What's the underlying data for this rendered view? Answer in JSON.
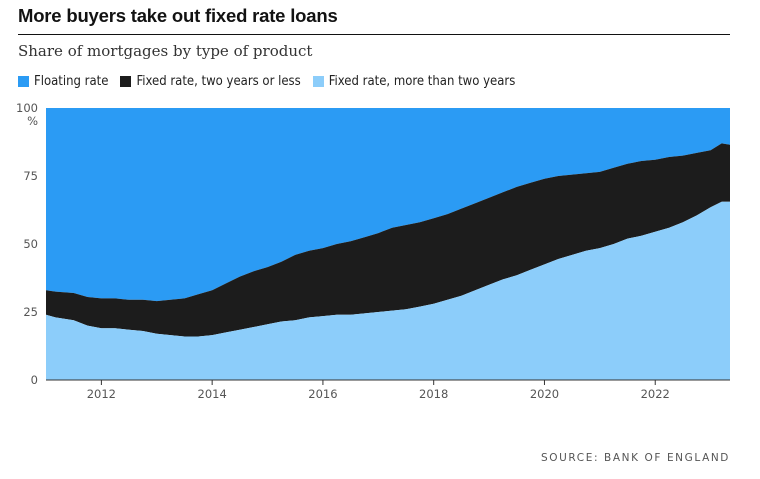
{
  "chart_data": {
    "type": "area",
    "stacked": true,
    "title": "More buyers take out fixed rate loans",
    "subtitle": "Share of mortgages by type of product",
    "ylabel": "%",
    "ylim": [
      0,
      100
    ],
    "yticks": [
      0,
      25,
      50,
      75,
      100
    ],
    "xlim": [
      2011.0,
      2023.35
    ],
    "xticks": [
      2012,
      2014,
      2016,
      2018,
      2020,
      2022
    ],
    "legend_position": "top",
    "grid": false,
    "x": [
      2011.0,
      2011.17,
      2011.5,
      2011.75,
      2012.0,
      2012.25,
      2012.5,
      2012.75,
      2013.0,
      2013.25,
      2013.5,
      2013.75,
      2014.0,
      2014.25,
      2014.5,
      2014.75,
      2015.0,
      2015.25,
      2015.5,
      2015.75,
      2016.0,
      2016.25,
      2016.5,
      2016.75,
      2017.0,
      2017.25,
      2017.5,
      2017.75,
      2018.0,
      2018.25,
      2018.5,
      2018.75,
      2019.0,
      2019.25,
      2019.5,
      2019.75,
      2020.0,
      2020.25,
      2020.5,
      2020.75,
      2021.0,
      2021.25,
      2021.5,
      2021.75,
      2022.0,
      2022.25,
      2022.5,
      2022.75,
      2023.0,
      2023.2,
      2023.35
    ],
    "series": [
      {
        "name": "Fixed rate, more than two years",
        "values": [
          24,
          23,
          22,
          20,
          19,
          19,
          18.5,
          18,
          17,
          16.5,
          16,
          16,
          16.5,
          17.5,
          18.5,
          19.5,
          20.5,
          21.5,
          22,
          23,
          23.5,
          24,
          24,
          24.5,
          25,
          25.5,
          26,
          27,
          28,
          29.5,
          31,
          33,
          35,
          37,
          38.5,
          40.5,
          42.5,
          44.5,
          46,
          47.5,
          48.5,
          50,
          52,
          53,
          54.5,
          56,
          58,
          60.5,
          63.5,
          65.5,
          65.5
        ],
        "color": "#8ccdfa"
      },
      {
        "name": "Fixed rate, two years or less",
        "values": [
          9,
          9.5,
          10,
          10.5,
          11,
          11,
          11,
          11.5,
          12,
          13,
          14,
          15.5,
          16.5,
          18,
          19.5,
          20.5,
          21,
          22,
          24,
          24.5,
          25,
          26,
          27,
          28,
          29,
          30.5,
          31,
          31,
          31.5,
          31.5,
          32,
          32,
          32,
          32,
          32.5,
          32,
          31.5,
          30.5,
          29.5,
          28.5,
          28,
          28,
          27.5,
          27.5,
          26.5,
          26,
          24.5,
          23,
          21,
          21.5,
          21
        ]
      },
      {
        "name": "Floating rate",
        "values": [
          67,
          67.5,
          68,
          69.5,
          70,
          70,
          70.5,
          70.5,
          71,
          70.5,
          70,
          68.5,
          67,
          64.5,
          62,
          60,
          58.5,
          56.5,
          54,
          52.5,
          51.5,
          50,
          49,
          47.5,
          46,
          44,
          43,
          42,
          40.5,
          39,
          37,
          35,
          33,
          31,
          29,
          27.5,
          26,
          25,
          24.5,
          24,
          23.5,
          22,
          20.5,
          19.5,
          19,
          18,
          17.5,
          16.5,
          15.5,
          13,
          13.5
        ]
      }
    ],
    "source": "SOURCE: BANK OF ENGLAND"
  },
  "colors": {
    "floating": "#2b9bf4",
    "fixed_short": "#1c1c1c",
    "fixed_long": "#8ccdfa"
  },
  "legend": [
    {
      "label": "Floating rate",
      "color": "#2b9bf4"
    },
    {
      "label": "Fixed rate, two years or less",
      "color": "#1c1c1c"
    },
    {
      "label": "Fixed rate, more than two years",
      "color": "#8ccdfa"
    }
  ]
}
